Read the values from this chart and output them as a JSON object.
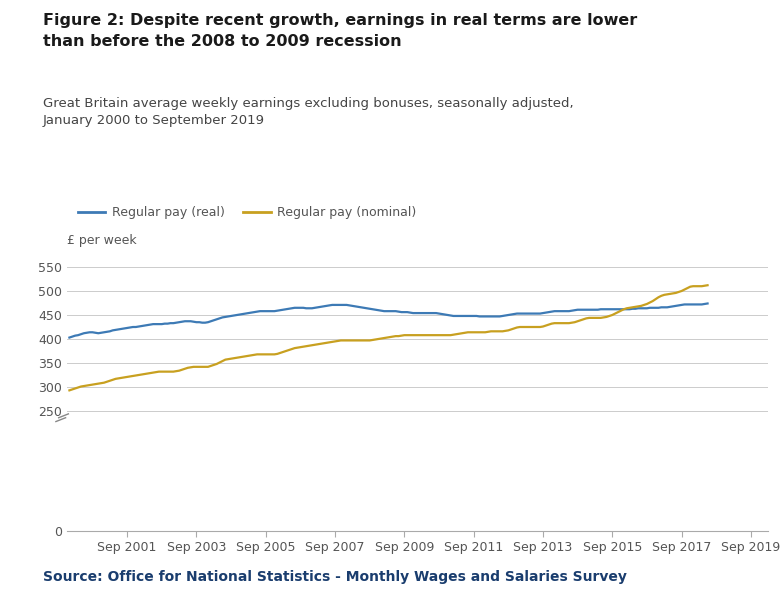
{
  "title_bold": "Figure 2: Despite recent growth, earnings in real terms are lower\nthan before the 2008 to 2009 recession",
  "subtitle": "Great Britain average weekly earnings excluding bonuses, seasonally adjusted,\nJanuary 2000 to September 2019",
  "ylabel": "£ per week",
  "source": "Source: Office for National Statistics - Monthly Wages and Salaries Survey",
  "legend_real": "Regular pay (real)",
  "legend_nominal": "Regular pay (nominal)",
  "color_real": "#3d7ab5",
  "color_nominal": "#c8a020",
  "background_color": "#ffffff",
  "ylim": [
    0,
    575
  ],
  "yticks": [
    0,
    250,
    300,
    350,
    400,
    450,
    500,
    550
  ],
  "title_color": "#1a1a1a",
  "subtitle_color": "#444444",
  "source_color": "#1a3d6e",
  "x_start_year": 2000.0,
  "x_end_year": 2020.17,
  "xtick_years": [
    2001,
    2003,
    2005,
    2007,
    2009,
    2011,
    2013,
    2015,
    2017,
    2019
  ],
  "real_pay": [
    403,
    405,
    407,
    408,
    410,
    412,
    413,
    414,
    414,
    413,
    412,
    413,
    414,
    415,
    416,
    418,
    419,
    420,
    421,
    422,
    423,
    424,
    425,
    425,
    426,
    427,
    428,
    429,
    430,
    431,
    431,
    431,
    431,
    432,
    432,
    433,
    433,
    434,
    435,
    436,
    437,
    437,
    437,
    436,
    435,
    435,
    434,
    434,
    435,
    437,
    439,
    441,
    443,
    445,
    446,
    447,
    448,
    449,
    450,
    451,
    452,
    453,
    454,
    455,
    456,
    457,
    458,
    458,
    458,
    458,
    458,
    458,
    459,
    460,
    461,
    462,
    463,
    464,
    465,
    465,
    465,
    465,
    464,
    464,
    464,
    465,
    466,
    467,
    468,
    469,
    470,
    471,
    471,
    471,
    471,
    471,
    471,
    470,
    469,
    468,
    467,
    466,
    465,
    464,
    463,
    462,
    461,
    460,
    459,
    458,
    458,
    458,
    458,
    458,
    457,
    456,
    456,
    456,
    455,
    454,
    454,
    454,
    454,
    454,
    454,
    454,
    454,
    454,
    453,
    452,
    451,
    450,
    449,
    448,
    448,
    448,
    448,
    448,
    448,
    448,
    448,
    448,
    447,
    447,
    447,
    447,
    447,
    447,
    447,
    447,
    448,
    449,
    450,
    451,
    452,
    453,
    453,
    453,
    453,
    453,
    453,
    453,
    453,
    453,
    454,
    455,
    456,
    457,
    458,
    458,
    458,
    458,
    458,
    458,
    459,
    460,
    461,
    461,
    461,
    461,
    461,
    461,
    461,
    461,
    462,
    462,
    462,
    462,
    462,
    462,
    462,
    462,
    462,
    462,
    462,
    463,
    463,
    464,
    464,
    464,
    464,
    465,
    465,
    465,
    465,
    466,
    466,
    466,
    467,
    468,
    469,
    470,
    471,
    472,
    472,
    472,
    472,
    472,
    472,
    472,
    473,
    474
  ],
  "nominal_pay": [
    293,
    295,
    297,
    299,
    301,
    302,
    303,
    304,
    305,
    306,
    307,
    308,
    309,
    311,
    313,
    315,
    317,
    318,
    319,
    320,
    321,
    322,
    323,
    324,
    325,
    326,
    327,
    328,
    329,
    330,
    331,
    332,
    332,
    332,
    332,
    332,
    332,
    333,
    334,
    336,
    338,
    340,
    341,
    342,
    342,
    342,
    342,
    342,
    342,
    344,
    346,
    348,
    351,
    354,
    357,
    358,
    359,
    360,
    361,
    362,
    363,
    364,
    365,
    366,
    367,
    368,
    368,
    368,
    368,
    368,
    368,
    368,
    369,
    371,
    373,
    375,
    377,
    379,
    381,
    382,
    383,
    384,
    385,
    386,
    387,
    388,
    389,
    390,
    391,
    392,
    393,
    394,
    395,
    396,
    397,
    397,
    397,
    397,
    397,
    397,
    397,
    397,
    397,
    397,
    397,
    398,
    399,
    400,
    401,
    402,
    403,
    404,
    405,
    406,
    406,
    407,
    408,
    408,
    408,
    408,
    408,
    408,
    408,
    408,
    408,
    408,
    408,
    408,
    408,
    408,
    408,
    408,
    408,
    409,
    410,
    411,
    412,
    413,
    414,
    414,
    414,
    414,
    414,
    414,
    414,
    415,
    416,
    416,
    416,
    416,
    416,
    417,
    418,
    420,
    422,
    424,
    425,
    425,
    425,
    425,
    425,
    425,
    425,
    425,
    426,
    428,
    430,
    432,
    433,
    433,
    433,
    433,
    433,
    433,
    434,
    435,
    437,
    439,
    441,
    443,
    444,
    444,
    444,
    444,
    444,
    445,
    446,
    448,
    450,
    453,
    456,
    459,
    462,
    464,
    465,
    466,
    467,
    468,
    469,
    471,
    473,
    476,
    479,
    483,
    487,
    490,
    492,
    493,
    494,
    495,
    496,
    498,
    500,
    503,
    506,
    509,
    510,
    510,
    510,
    510,
    511,
    512
  ]
}
